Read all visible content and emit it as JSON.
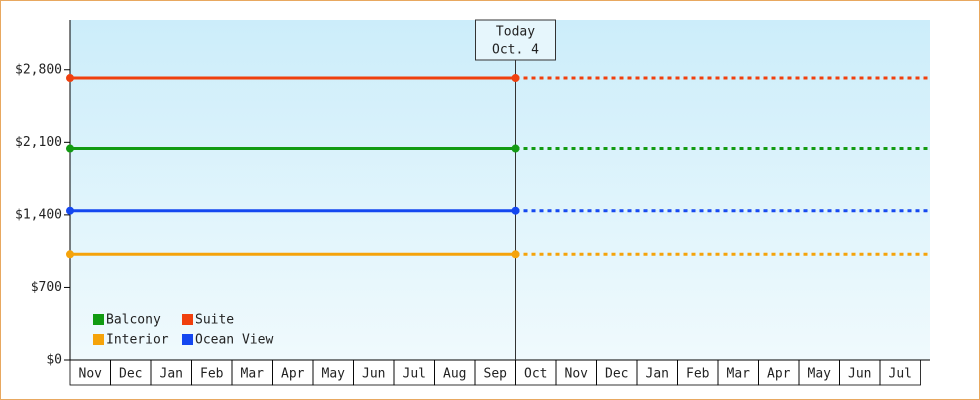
{
  "chart_data": {
    "type": "line",
    "categories": [
      "Nov",
      "Dec",
      "Jan",
      "Feb",
      "Mar",
      "Apr",
      "May",
      "Jun",
      "Jul",
      "Aug",
      "Sep",
      "Oct",
      "Nov",
      "Dec",
      "Jan",
      "Feb",
      "Mar",
      "Apr",
      "May",
      "Jun",
      "Jul"
    ],
    "series": [
      {
        "name": "Balcony",
        "color": "#129b12",
        "values": [
          2040,
          2040,
          2040,
          2040,
          2040,
          2040,
          2040,
          2040,
          2040,
          2040,
          2040,
          2040,
          null,
          null,
          null,
          null,
          null,
          null,
          null,
          null,
          null
        ]
      },
      {
        "name": "Suite",
        "color": "#f0400e",
        "values": [
          2720,
          2720,
          2720,
          2720,
          2720,
          2720,
          2720,
          2720,
          2720,
          2720,
          2720,
          2720,
          null,
          null,
          null,
          null,
          null,
          null,
          null,
          null,
          null
        ]
      },
      {
        "name": "Interior",
        "color": "#f5a30a",
        "values": [
          1020,
          1020,
          1020,
          1020,
          1020,
          1020,
          1020,
          1020,
          1020,
          1020,
          1020,
          1020,
          null,
          null,
          null,
          null,
          null,
          null,
          null,
          null,
          null
        ]
      },
      {
        "name": "Ocean View",
        "color": "#1447f0",
        "values": [
          1440,
          1440,
          1440,
          1440,
          1440,
          1440,
          1440,
          1440,
          1440,
          1440,
          1440,
          1440,
          null,
          null,
          null,
          null,
          null,
          null,
          null,
          null,
          null
        ]
      }
    ],
    "ylim": [
      0,
      3280
    ],
    "yticks": [
      {
        "value": 0,
        "label": "$0"
      },
      {
        "value": 700,
        "label": "$700"
      },
      {
        "value": 1400,
        "label": "$1,400"
      },
      {
        "value": 2100,
        "label": "$2,100"
      },
      {
        "value": 2800,
        "label": "$2,800"
      }
    ],
    "annotation": {
      "lines": [
        "Today",
        "Oct. 4"
      ],
      "at": "Oct"
    },
    "legend": "lower left"
  }
}
